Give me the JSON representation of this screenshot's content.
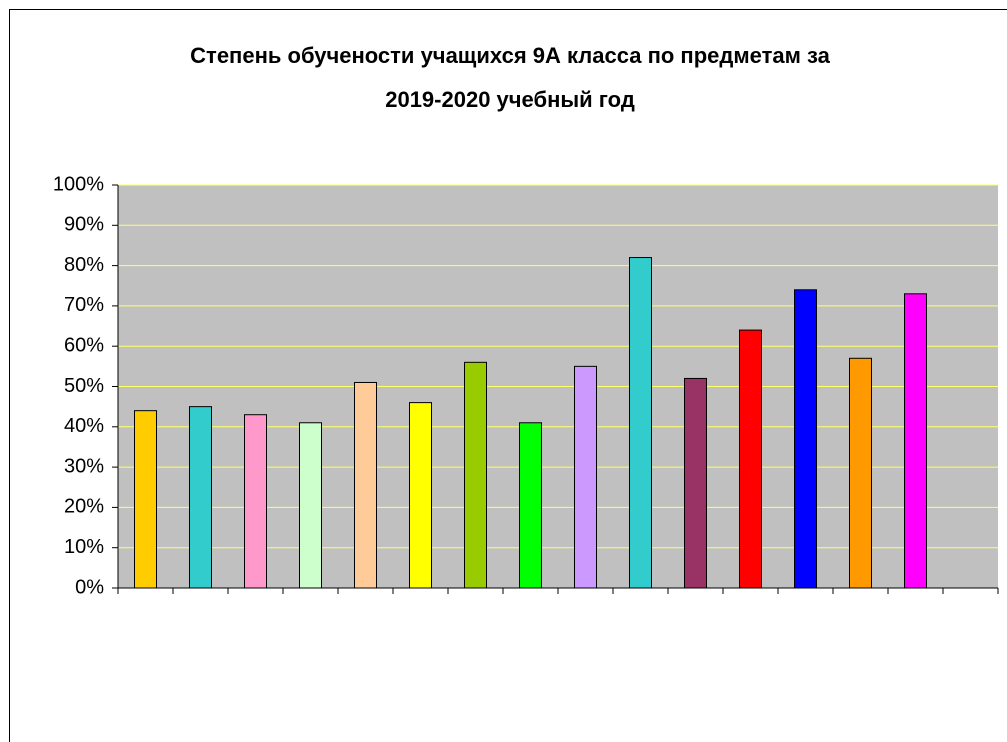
{
  "chart_data": {
    "type": "bar",
    "title": "Степень обучености учащихся 9А класса по предметам за 2019-2020 учебный год",
    "categories": [
      null,
      null,
      null,
      null,
      null,
      null,
      null,
      null,
      null,
      null,
      null,
      null,
      null,
      null,
      null,
      null
    ],
    "values": [
      44,
      45,
      43,
      41,
      51,
      46,
      56,
      41,
      55,
      82,
      52,
      64,
      74,
      57,
      73,
      null
    ],
    "colors": [
      "#FFCC00",
      "#33CCCC",
      "#FF99CC",
      "#CCFFCC",
      "#FFCC99",
      "#FFFF00",
      "#99CC00",
      "#00FF00",
      "#CC99FF",
      "#33CCCC",
      "#993366",
      "#FF0000",
      "#0000FF",
      "#FF9900",
      "#FF00FF",
      null
    ],
    "ylim": [
      0,
      100
    ],
    "yticks": [
      {
        "value": 0,
        "label": "0%"
      },
      {
        "value": 10,
        "label": "10%"
      },
      {
        "value": 20,
        "label": "20%"
      },
      {
        "value": 30,
        "label": "30%"
      },
      {
        "value": 40,
        "label": "40%"
      },
      {
        "value": 50,
        "label": "50%"
      },
      {
        "value": 60,
        "label": "60%"
      },
      {
        "value": 70,
        "label": "70%"
      },
      {
        "value": 80,
        "label": "80%"
      },
      {
        "value": 90,
        "label": "90%"
      },
      {
        "value": 100,
        "label": "100%"
      }
    ],
    "grid": true
  }
}
